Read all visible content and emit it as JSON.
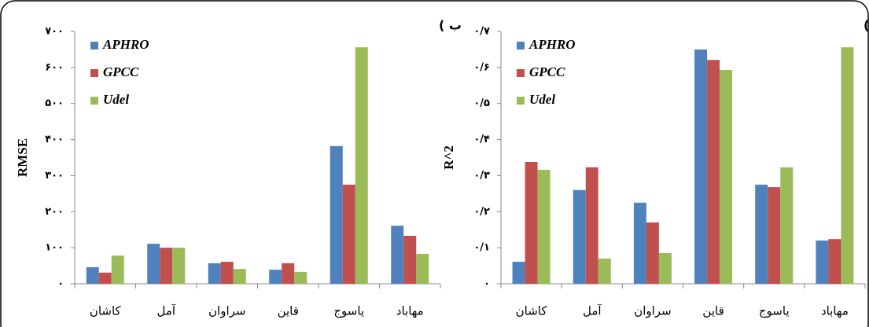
{
  "chart_data": [
    {
      "type": "bar",
      "title": "ب )",
      "y_label": "RMSE",
      "categories": [
        "کاشان",
        "آمل",
        "سراوان",
        "قاین",
        "یاسوج",
        "مهاباد"
      ],
      "series": [
        {
          "name": "APHRO",
          "color": "#4f81bd",
          "values": [
            46,
            111,
            57,
            39,
            382,
            161
          ]
        },
        {
          "name": "GPCC",
          "color": "#c0504d",
          "values": [
            31,
            100,
            61,
            57,
            275,
            133
          ]
        },
        {
          "name": "Udel",
          "color": "#9bbb59",
          "values": [
            78,
            100,
            41,
            33,
            656,
            83
          ]
        }
      ],
      "ylim": [
        0,
        700
      ],
      "yticks": [
        {
          "value": 0,
          "label": "۰"
        },
        {
          "value": 100,
          "label": "۱۰۰"
        },
        {
          "value": 200,
          "label": "۲۰۰"
        },
        {
          "value": 300,
          "label": "۳۰۰"
        },
        {
          "value": 400,
          "label": "۴۰۰"
        },
        {
          "value": 500,
          "label": "۵۰۰"
        },
        {
          "value": 600,
          "label": "۶۰۰"
        },
        {
          "value": 700,
          "label": "۷۰۰"
        }
      ]
    },
    {
      "type": "bar",
      "title": "الف )",
      "y_label": "R^2",
      "categories": [
        "کاشان",
        "آمل",
        "سراوان",
        "قاین",
        "یاسوج",
        "مهاباد"
      ],
      "series": [
        {
          "name": "APHRO",
          "color": "#4f81bd",
          "values": [
            0.061,
            0.26,
            0.225,
            0.65,
            0.275,
            0.12
          ]
        },
        {
          "name": "GPCC",
          "color": "#c0504d",
          "values": [
            0.338,
            0.323,
            0.17,
            0.621,
            0.268,
            0.124
          ]
        },
        {
          "name": "Udel",
          "color": "#9bbb59",
          "values": [
            0.316,
            0.07,
            0.085,
            0.593,
            0.323,
            0.656
          ]
        }
      ],
      "ylim": [
        0,
        0.7
      ],
      "yticks": [
        {
          "value": 0,
          "label": "۰"
        },
        {
          "value": 0.1,
          "label": "۰/۱"
        },
        {
          "value": 0.2,
          "label": "۰/۲"
        },
        {
          "value": 0.3,
          "label": "۰/۳"
        },
        {
          "value": 0.4,
          "label": "۰/۴"
        },
        {
          "value": 0.5,
          "label": "۰/۵"
        },
        {
          "value": 0.6,
          "label": "۰/۶"
        },
        {
          "value": 0.7,
          "label": "۰/۷"
        }
      ]
    }
  ]
}
